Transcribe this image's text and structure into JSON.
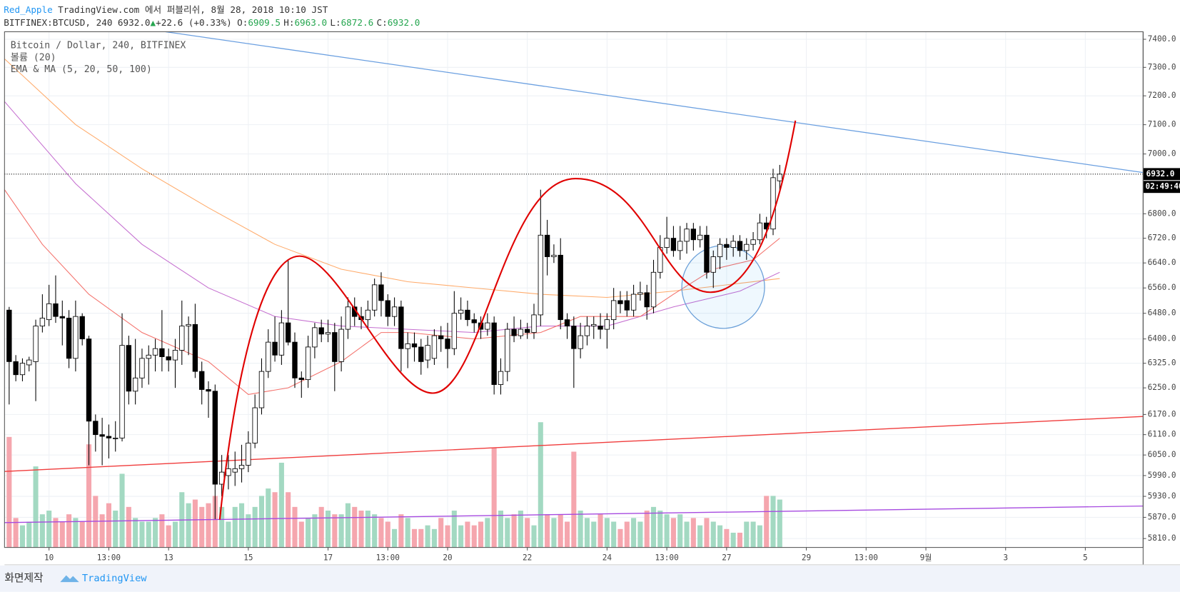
{
  "header": {
    "author": "Red_Apple",
    "published": "TradingView.com 에서 퍼블리쉬, 8월 28, 2018 10:10 JST",
    "symbol": "BITFINEX:BTCUSD, 240",
    "last": "6932.0",
    "arrow": "▲",
    "change": "+22.6 (+0.33%)",
    "o_label": "O:",
    "o": "6909.5",
    "h_label": "H:",
    "h": "6963.0",
    "l_label": "L:",
    "l": "6872.6",
    "c_label": "C:",
    "c": "6932.0"
  },
  "chart_data": {
    "type": "candlestick",
    "title": "Bitcoin / Dollar, 240, BITFINEX",
    "volume_label": "볼륨 (20)",
    "overlay_label": "EMA & MA (5, 20, 50, 100)",
    "log_scale": true,
    "grid": true,
    "up_color": "#ffffff",
    "down_color": "#000000",
    "volume_up_color": "#a3d9c2",
    "volume_down_color": "#f5a6ae",
    "categories": [
      null,
      null,
      null,
      null,
      null,
      null,
      null,
      null,
      null,
      null,
      null,
      null,
      null,
      null,
      null,
      null,
      null,
      null,
      null,
      null,
      null,
      null,
      null,
      null,
      null,
      null,
      null,
      null,
      null,
      null,
      null,
      null,
      null,
      null,
      null,
      null,
      null,
      null,
      null,
      null,
      null,
      null,
      null,
      null,
      null,
      null,
      null,
      null,
      null,
      null,
      null,
      null,
      null,
      null,
      null,
      null,
      null,
      null,
      null,
      null,
      null,
      null,
      null,
      null,
      null,
      null,
      null,
      null,
      null,
      null,
      null,
      null,
      null,
      null,
      null,
      null,
      null,
      null,
      null,
      null,
      null,
      null,
      null,
      null,
      null,
      null,
      null,
      null,
      null,
      null,
      null,
      null,
      null,
      null,
      null,
      null,
      null,
      null,
      null,
      null,
      null,
      null,
      null,
      null,
      null,
      null,
      null,
      null,
      null,
      null,
      null,
      null,
      null,
      null,
      null,
      null,
      null
    ],
    "open": [
      6490,
      6330,
      6290,
      6320,
      6330,
      6440,
      6460,
      6510,
      6470,
      6465,
      6340,
      6470,
      6400,
      6150,
      6110,
      6105,
      6100,
      6100,
      6380,
      6240,
      6280,
      6340,
      6350,
      6370,
      6345,
      6335,
      6365,
      6440,
      6445,
      6300,
      6245,
      6240,
      5965,
      5990,
      6000,
      6010,
      6020,
      6085,
      6190,
      6300,
      6390,
      6350,
      6450,
      6390,
      6280,
      6275,
      6375,
      6435,
      6415,
      6420,
      6330,
      6430,
      6500,
      6470,
      6460,
      6490,
      6570,
      6520,
      6470,
      6500,
      6370,
      6385,
      6375,
      6335,
      6340,
      6410,
      6400,
      6370,
      6480,
      6490,
      6460,
      6450,
      6430,
      6450,
      6260,
      6300,
      6430,
      6410,
      6430,
      6420,
      6475,
      6730,
      6660,
      6665,
      6460,
      6440,
      6370,
      6410,
      6440,
      6440,
      6430,
      6460,
      6520,
      6520,
      6490,
      6540,
      6545,
      6500,
      6610,
      6690,
      6720,
      6680,
      6710,
      6750,
      6715,
      6730,
      6610,
      6660,
      6700,
      6690,
      6710,
      6680,
      6700,
      6715,
      6770,
      6750,
      6909.5
    ],
    "high": [
      6500,
      6350,
      6340,
      6345,
      6460,
      6540,
      6570,
      6600,
      6520,
      6490,
      6520,
      6480,
      6410,
      6170,
      6160,
      6140,
      6150,
      6480,
      6410,
      6400,
      6370,
      6380,
      6400,
      6490,
      6370,
      6400,
      6520,
      6470,
      6510,
      6330,
      6270,
      6260,
      6050,
      6050,
      6060,
      6080,
      6120,
      6230,
      6340,
      6430,
      6470,
      6490,
      6650,
      6420,
      6300,
      6410,
      6450,
      6460,
      6460,
      6450,
      6470,
      6530,
      6530,
      6500,
      6520,
      6590,
      6610,
      6540,
      6530,
      6520,
      6420,
      6420,
      6400,
      6410,
      6430,
      6440,
      6450,
      6550,
      6530,
      6520,
      6480,
      6470,
      6480,
      6470,
      6340,
      6450,
      6470,
      6460,
      6450,
      6510,
      6880,
      6780,
      6700,
      6720,
      6480,
      6470,
      6450,
      6470,
      6470,
      6480,
      6480,
      6560,
      6550,
      6550,
      6570,
      6580,
      6570,
      6650,
      6730,
      6790,
      6760,
      6760,
      6770,
      6770,
      6760,
      6760,
      6680,
      6720,
      6720,
      6730,
      6730,
      6720,
      6740,
      6800,
      6790,
      6950,
      6963
    ],
    "low": [
      6200,
      6270,
      6270,
      6300,
      6210,
      6420,
      6440,
      6450,
      6380,
      6310,
      6300,
      6380,
      6020,
      6060,
      6020,
      6040,
      6060,
      6090,
      6200,
      6200,
      6250,
      6260,
      6300,
      6300,
      6300,
      6250,
      6320,
      6350,
      6280,
      6200,
      6160,
      5865,
      5930,
      5950,
      5960,
      5970,
      6000,
      6070,
      6170,
      6280,
      6330,
      6320,
      6380,
      6250,
      6220,
      6250,
      6340,
      6390,
      6390,
      6240,
      6300,
      6400,
      6440,
      6430,
      6430,
      6470,
      6470,
      6440,
      6440,
      6300,
      6310,
      6330,
      6290,
      6310,
      6320,
      6360,
      6310,
      6350,
      6460,
      6440,
      6420,
      6400,
      6410,
      6230,
      6230,
      6270,
      6390,
      6400,
      6400,
      6400,
      6440,
      6600,
      6640,
      6430,
      6400,
      6250,
      6340,
      6380,
      6400,
      6400,
      6370,
      6430,
      6480,
      6470,
      6470,
      6520,
      6460,
      6480,
      6590,
      6670,
      6660,
      6650,
      6670,
      6680,
      6690,
      6590,
      6560,
      6620,
      6650,
      6660,
      6660,
      6650,
      6680,
      6700,
      6720,
      6730,
      6872.6
    ],
    "close": [
      6330,
      6290,
      6325,
      6335,
      6440,
      6465,
      6510,
      6470,
      6465,
      6340,
      6470,
      6400,
      6150,
      6110,
      6105,
      6100,
      6100,
      6380,
      6240,
      6280,
      6340,
      6350,
      6370,
      6345,
      6335,
      6365,
      6440,
      6445,
      6300,
      6245,
      6240,
      5965,
      6000,
      6010,
      6010,
      6020,
      6085,
      6190,
      6300,
      6390,
      6350,
      6450,
      6390,
      6280,
      6275,
      6375,
      6435,
      6415,
      6420,
      6330,
      6430,
      6500,
      6470,
      6460,
      6490,
      6570,
      6520,
      6470,
      6500,
      6370,
      6385,
      6375,
      6330,
      6380,
      6410,
      6400,
      6370,
      6480,
      6490,
      6460,
      6450,
      6430,
      6450,
      6260,
      6300,
      6430,
      6410,
      6430,
      6420,
      6475,
      6730,
      6660,
      6665,
      6460,
      6440,
      6370,
      6410,
      6440,
      6445,
      6430,
      6460,
      6520,
      6510,
      6490,
      6540,
      6545,
      6500,
      6610,
      6690,
      6720,
      6680,
      6710,
      6750,
      6715,
      6730,
      6610,
      6660,
      6700,
      6690,
      6710,
      6680,
      6700,
      6715,
      6770,
      6750,
      6920,
      6932
    ],
    "volume": [
      150,
      40,
      30,
      35,
      110,
      45,
      50,
      40,
      35,
      45,
      40,
      35,
      140,
      70,
      45,
      60,
      50,
      100,
      55,
      40,
      35,
      35,
      40,
      45,
      30,
      35,
      75,
      60,
      65,
      55,
      60,
      70,
      55,
      35,
      55,
      60,
      45,
      55,
      70,
      80,
      75,
      115,
      75,
      55,
      35,
      40,
      45,
      55,
      50,
      45,
      45,
      60,
      55,
      50,
      50,
      45,
      40,
      35,
      25,
      45,
      40,
      25,
      25,
      30,
      25,
      40,
      30,
      50,
      30,
      35,
      30,
      35,
      40,
      135,
      50,
      40,
      45,
      50,
      40,
      30,
      170,
      45,
      40,
      45,
      35,
      130,
      50,
      40,
      35,
      45,
      40,
      35,
      25,
      35,
      40,
      35,
      50,
      55,
      50,
      45,
      40,
      45,
      35,
      40,
      30,
      40,
      35,
      30,
      25,
      20,
      20,
      35,
      35,
      30,
      70,
      70,
      65
    ],
    "vlim": [
      0,
      700
    ],
    "overlays": [
      {
        "color": "#ffab6b",
        "x": [
          -0.7,
          10,
          20,
          30,
          40,
          50,
          60,
          70,
          80,
          90,
          100,
          110,
          116
        ],
        "values": [
          7330,
          7100,
          6950,
          6820,
          6700,
          6620,
          6580,
          6560,
          6540,
          6530,
          6550,
          6575,
          6590
        ]
      },
      {
        "color": "#c56fd0",
        "x": [
          -0.7,
          10,
          20,
          30,
          40,
          50,
          60,
          70,
          80,
          90,
          100,
          110,
          116
        ],
        "values": [
          7180,
          6900,
          6700,
          6560,
          6470,
          6440,
          6430,
          6420,
          6440,
          6440,
          6500,
          6550,
          6610
        ]
      },
      {
        "color": "#f4706a",
        "x": [
          -0.7,
          5,
          12,
          20,
          30,
          36,
          42,
          50,
          56,
          60,
          70,
          80,
          86,
          95,
          100,
          106,
          112,
          116
        ],
        "values": [
          6880,
          6700,
          6540,
          6420,
          6330,
          6230,
          6250,
          6330,
          6420,
          6420,
          6400,
          6420,
          6470,
          6470,
          6540,
          6620,
          6650,
          6720
        ]
      }
    ],
    "last_price": {
      "value": 6932,
      "label": "6932.0"
    },
    "countdown": "02:49:40",
    "xlim": [
      -0.7,
      170.7
    ],
    "xticks": [
      {
        "value": 6,
        "label": "10"
      },
      {
        "value": 15,
        "label": "13:00"
      },
      {
        "value": 24,
        "label": "13"
      },
      {
        "value": 36,
        "label": "15"
      },
      {
        "value": 48,
        "label": "17"
      },
      {
        "value": 57,
        "label": "13:00"
      },
      {
        "value": 66,
        "label": "20"
      },
      {
        "value": 78,
        "label": "22"
      },
      {
        "value": 90,
        "label": "24"
      },
      {
        "value": 99,
        "label": "13:00"
      },
      {
        "value": 108,
        "label": "27"
      },
      {
        "value": 120,
        "label": "29"
      },
      {
        "value": 129,
        "label": "13:00"
      },
      {
        "value": 138,
        "label": "9월"
      },
      {
        "value": 150,
        "label": "3"
      },
      {
        "value": 162,
        "label": "5"
      }
    ],
    "ylim": [
      5785,
      7427
    ],
    "yticks": [
      {
        "value": 7400,
        "label": "7400.0"
      },
      {
        "value": 7300,
        "label": "7300.0"
      },
      {
        "value": 7200,
        "label": "7200.0"
      },
      {
        "value": 7100,
        "label": "7100.0"
      },
      {
        "value": 7000,
        "label": "7000.0"
      },
      {
        "value": 6800,
        "label": "6800.0"
      },
      {
        "value": 6720,
        "label": "6720.0"
      },
      {
        "value": 6640,
        "label": "6640.0"
      },
      {
        "value": 6560,
        "label": "6560.0"
      },
      {
        "value": 6480,
        "label": "6480.0"
      },
      {
        "value": 6400,
        "label": "6400.0"
      },
      {
        "value": 6325,
        "label": "6325.0"
      },
      {
        "value": 6250,
        "label": "6250.0"
      },
      {
        "value": 6170,
        "label": "6170.0"
      },
      {
        "value": 6110,
        "label": "6110.0"
      },
      {
        "value": 6050,
        "label": "6050.0"
      },
      {
        "value": 5990,
        "label": "5990.0"
      },
      {
        "value": 5930,
        "label": "5930.0"
      },
      {
        "value": 5870,
        "label": "5870.0"
      },
      {
        "value": 5810,
        "label": "5810.0"
      }
    ]
  },
  "footer": {
    "credit": "화면제작",
    "brand": "TradingView"
  }
}
